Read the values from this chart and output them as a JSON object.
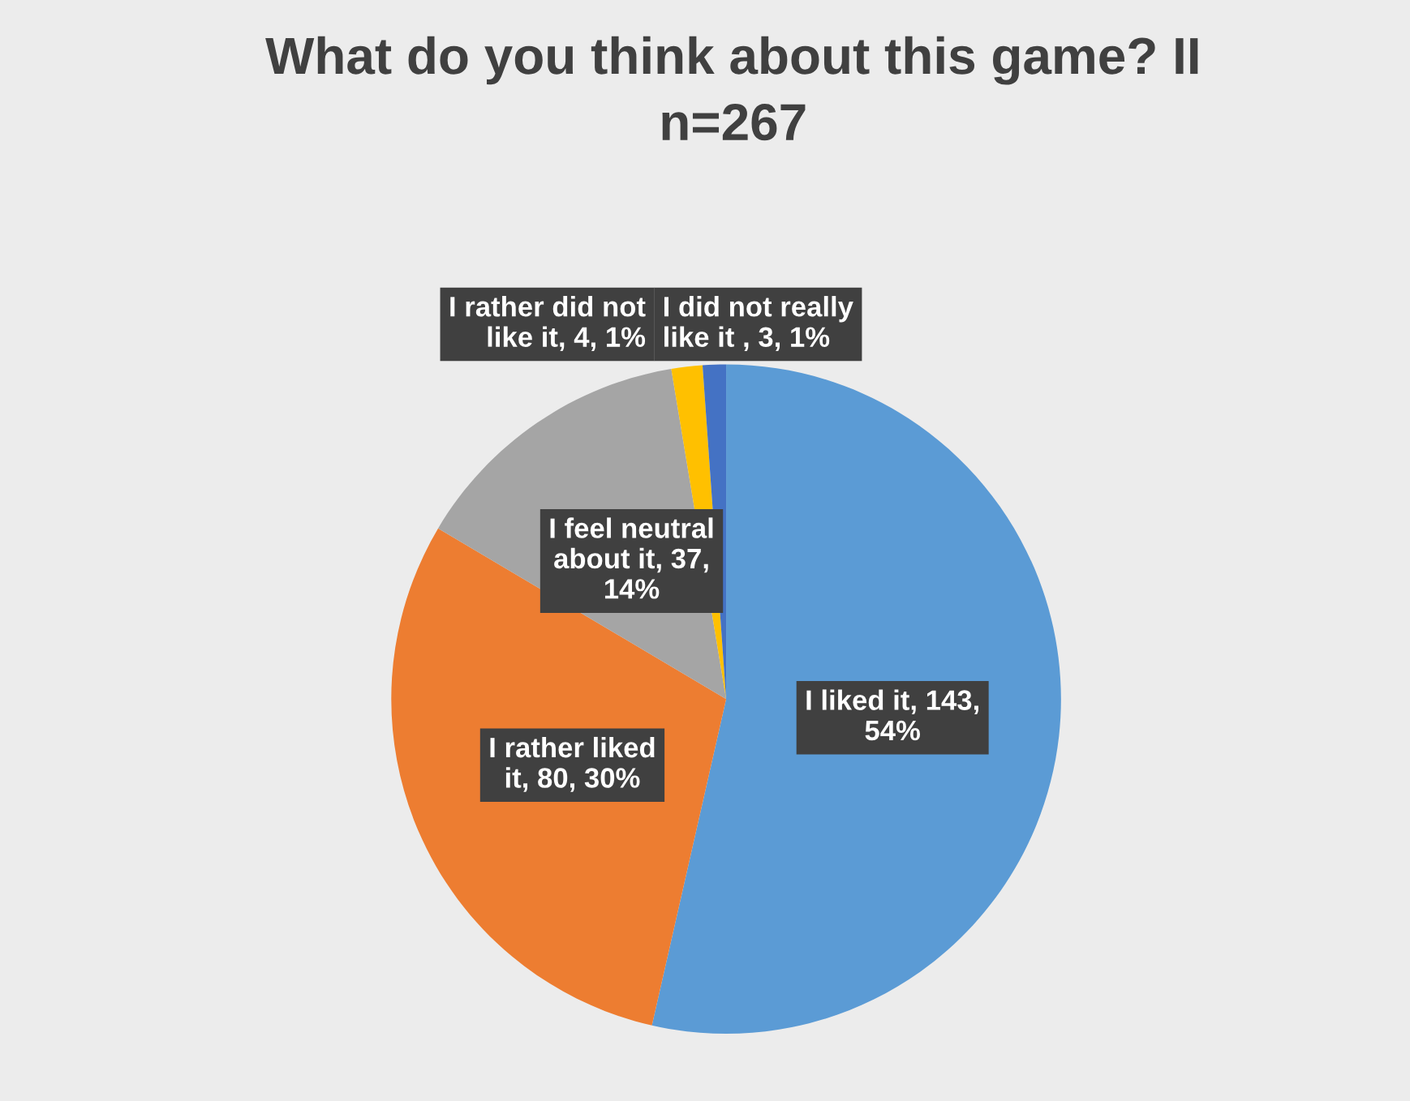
{
  "chart_data": {
    "type": "pie",
    "title": "What do you think about this game? II",
    "subtitle": "n=267",
    "categories": [
      "I liked it",
      "I rather liked it",
      "I feel neutral about it",
      "I rather did not like it",
      "I did not really like it "
    ],
    "values": [
      143,
      80,
      37,
      4,
      3
    ],
    "value_labels": [
      "143, 54%",
      "80, 30%",
      "37, 14%",
      "4, 1%",
      "3, 1%"
    ],
    "colors": [
      "#5b9bd5",
      "#ed7d31",
      "#a5a5a5",
      "#ffc000",
      "#4472c4"
    ]
  }
}
